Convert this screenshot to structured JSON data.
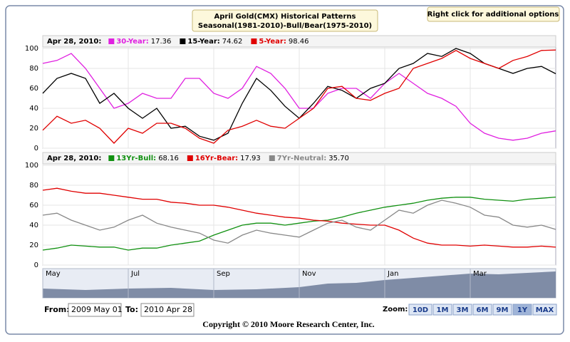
{
  "title_box": {
    "line1": "April Gold(CMX) Historical Patterns",
    "line2": "Seasonal(1981-2010)-Bull/Bear(1975-2010)"
  },
  "options_hint": "Right click for additional options",
  "chart_data": [
    {
      "type": "line",
      "date_label": "Apr 28, 2010:",
      "ylim": [
        0,
        100
      ],
      "yticks": [
        0,
        20,
        40,
        60,
        80,
        100
      ],
      "grid": true,
      "series": [
        {
          "name": "30-Year:",
          "color": "#e020e0",
          "latest_label": "17.36",
          "values": [
            85,
            88,
            95,
            80,
            60,
            40,
            45,
            55,
            50,
            50,
            70,
            70,
            55,
            50,
            60,
            82,
            75,
            60,
            40,
            40,
            55,
            60,
            60,
            50,
            65,
            75,
            65,
            55,
            50,
            42,
            25,
            15,
            10,
            8,
            10,
            15,
            17.36
          ]
        },
        {
          "name": "15-Year:",
          "color": "#000000",
          "latest_label": "74.62",
          "values": [
            55,
            70,
            75,
            70,
            45,
            55,
            40,
            30,
            40,
            20,
            22,
            12,
            8,
            15,
            45,
            70,
            58,
            42,
            30,
            45,
            62,
            58,
            50,
            60,
            65,
            80,
            85,
            95,
            92,
            100,
            95,
            85,
            80,
            75,
            80,
            82,
            74.62
          ]
        },
        {
          "name": "5-Year:",
          "color": "#e00000",
          "latest_label": "98.46",
          "values": [
            18,
            32,
            25,
            28,
            20,
            5,
            20,
            15,
            25,
            25,
            20,
            10,
            5,
            18,
            22,
            28,
            22,
            20,
            30,
            40,
            60,
            62,
            50,
            48,
            55,
            60,
            80,
            85,
            90,
            98,
            90,
            85,
            80,
            88,
            92,
            98,
            98.46
          ]
        }
      ]
    },
    {
      "type": "line",
      "date_label": "Apr 28, 2010:",
      "ylim": [
        0,
        100
      ],
      "yticks": [
        0,
        20,
        40,
        60,
        80,
        100
      ],
      "grid": true,
      "categories": [
        "May",
        null,
        null,
        null,
        null,
        null,
        "Jul",
        null,
        null,
        null,
        null,
        null,
        "Sep",
        null,
        null,
        null,
        null,
        null,
        "Nov",
        null,
        null,
        null,
        null,
        null,
        "Jan",
        null,
        null,
        null,
        null,
        null,
        "Mar",
        null,
        null,
        null,
        null,
        null,
        null
      ],
      "series": [
        {
          "name": "13Yr-Bull:",
          "color": "#109010",
          "latest_label": "68.16",
          "values": [
            15,
            17,
            20,
            19,
            18,
            18,
            15,
            17,
            17,
            20,
            22,
            24,
            30,
            35,
            40,
            42,
            42,
            40,
            42,
            44,
            45,
            48,
            52,
            55,
            58,
            60,
            62,
            65,
            67,
            68,
            68,
            66,
            65,
            64,
            66,
            67,
            68.16
          ]
        },
        {
          "name": "16Yr-Bear:",
          "color": "#e00000",
          "latest_label": "17.93",
          "values": [
            75,
            77,
            74,
            72,
            72,
            70,
            68,
            66,
            66,
            63,
            62,
            60,
            60,
            58,
            55,
            52,
            50,
            48,
            47,
            45,
            44,
            42,
            41,
            40,
            40,
            35,
            27,
            22,
            20,
            20,
            19,
            20,
            19,
            18,
            18,
            19,
            17.93
          ]
        },
        {
          "name": "7Yr-Neutral:",
          "color": "#888888",
          "latest_label": "35.70",
          "values": [
            50,
            52,
            45,
            40,
            35,
            38,
            45,
            50,
            42,
            38,
            35,
            32,
            25,
            22,
            30,
            35,
            32,
            30,
            28,
            35,
            42,
            45,
            38,
            35,
            45,
            55,
            52,
            60,
            65,
            62,
            58,
            50,
            48,
            40,
            38,
            40,
            35.7
          ]
        }
      ]
    }
  ],
  "range": {
    "from_label": "From:",
    "from": "2009 May 01",
    "to_label": "To:",
    "to": "2010 Apr 28"
  },
  "zoom": {
    "label": "Zoom:",
    "buttons": [
      "10D",
      "1M",
      "3M",
      "6M",
      "9M",
      "1Y",
      "MAX"
    ],
    "active": 5
  },
  "copyright": "Copyright © 2010 Moore Research Center, Inc."
}
